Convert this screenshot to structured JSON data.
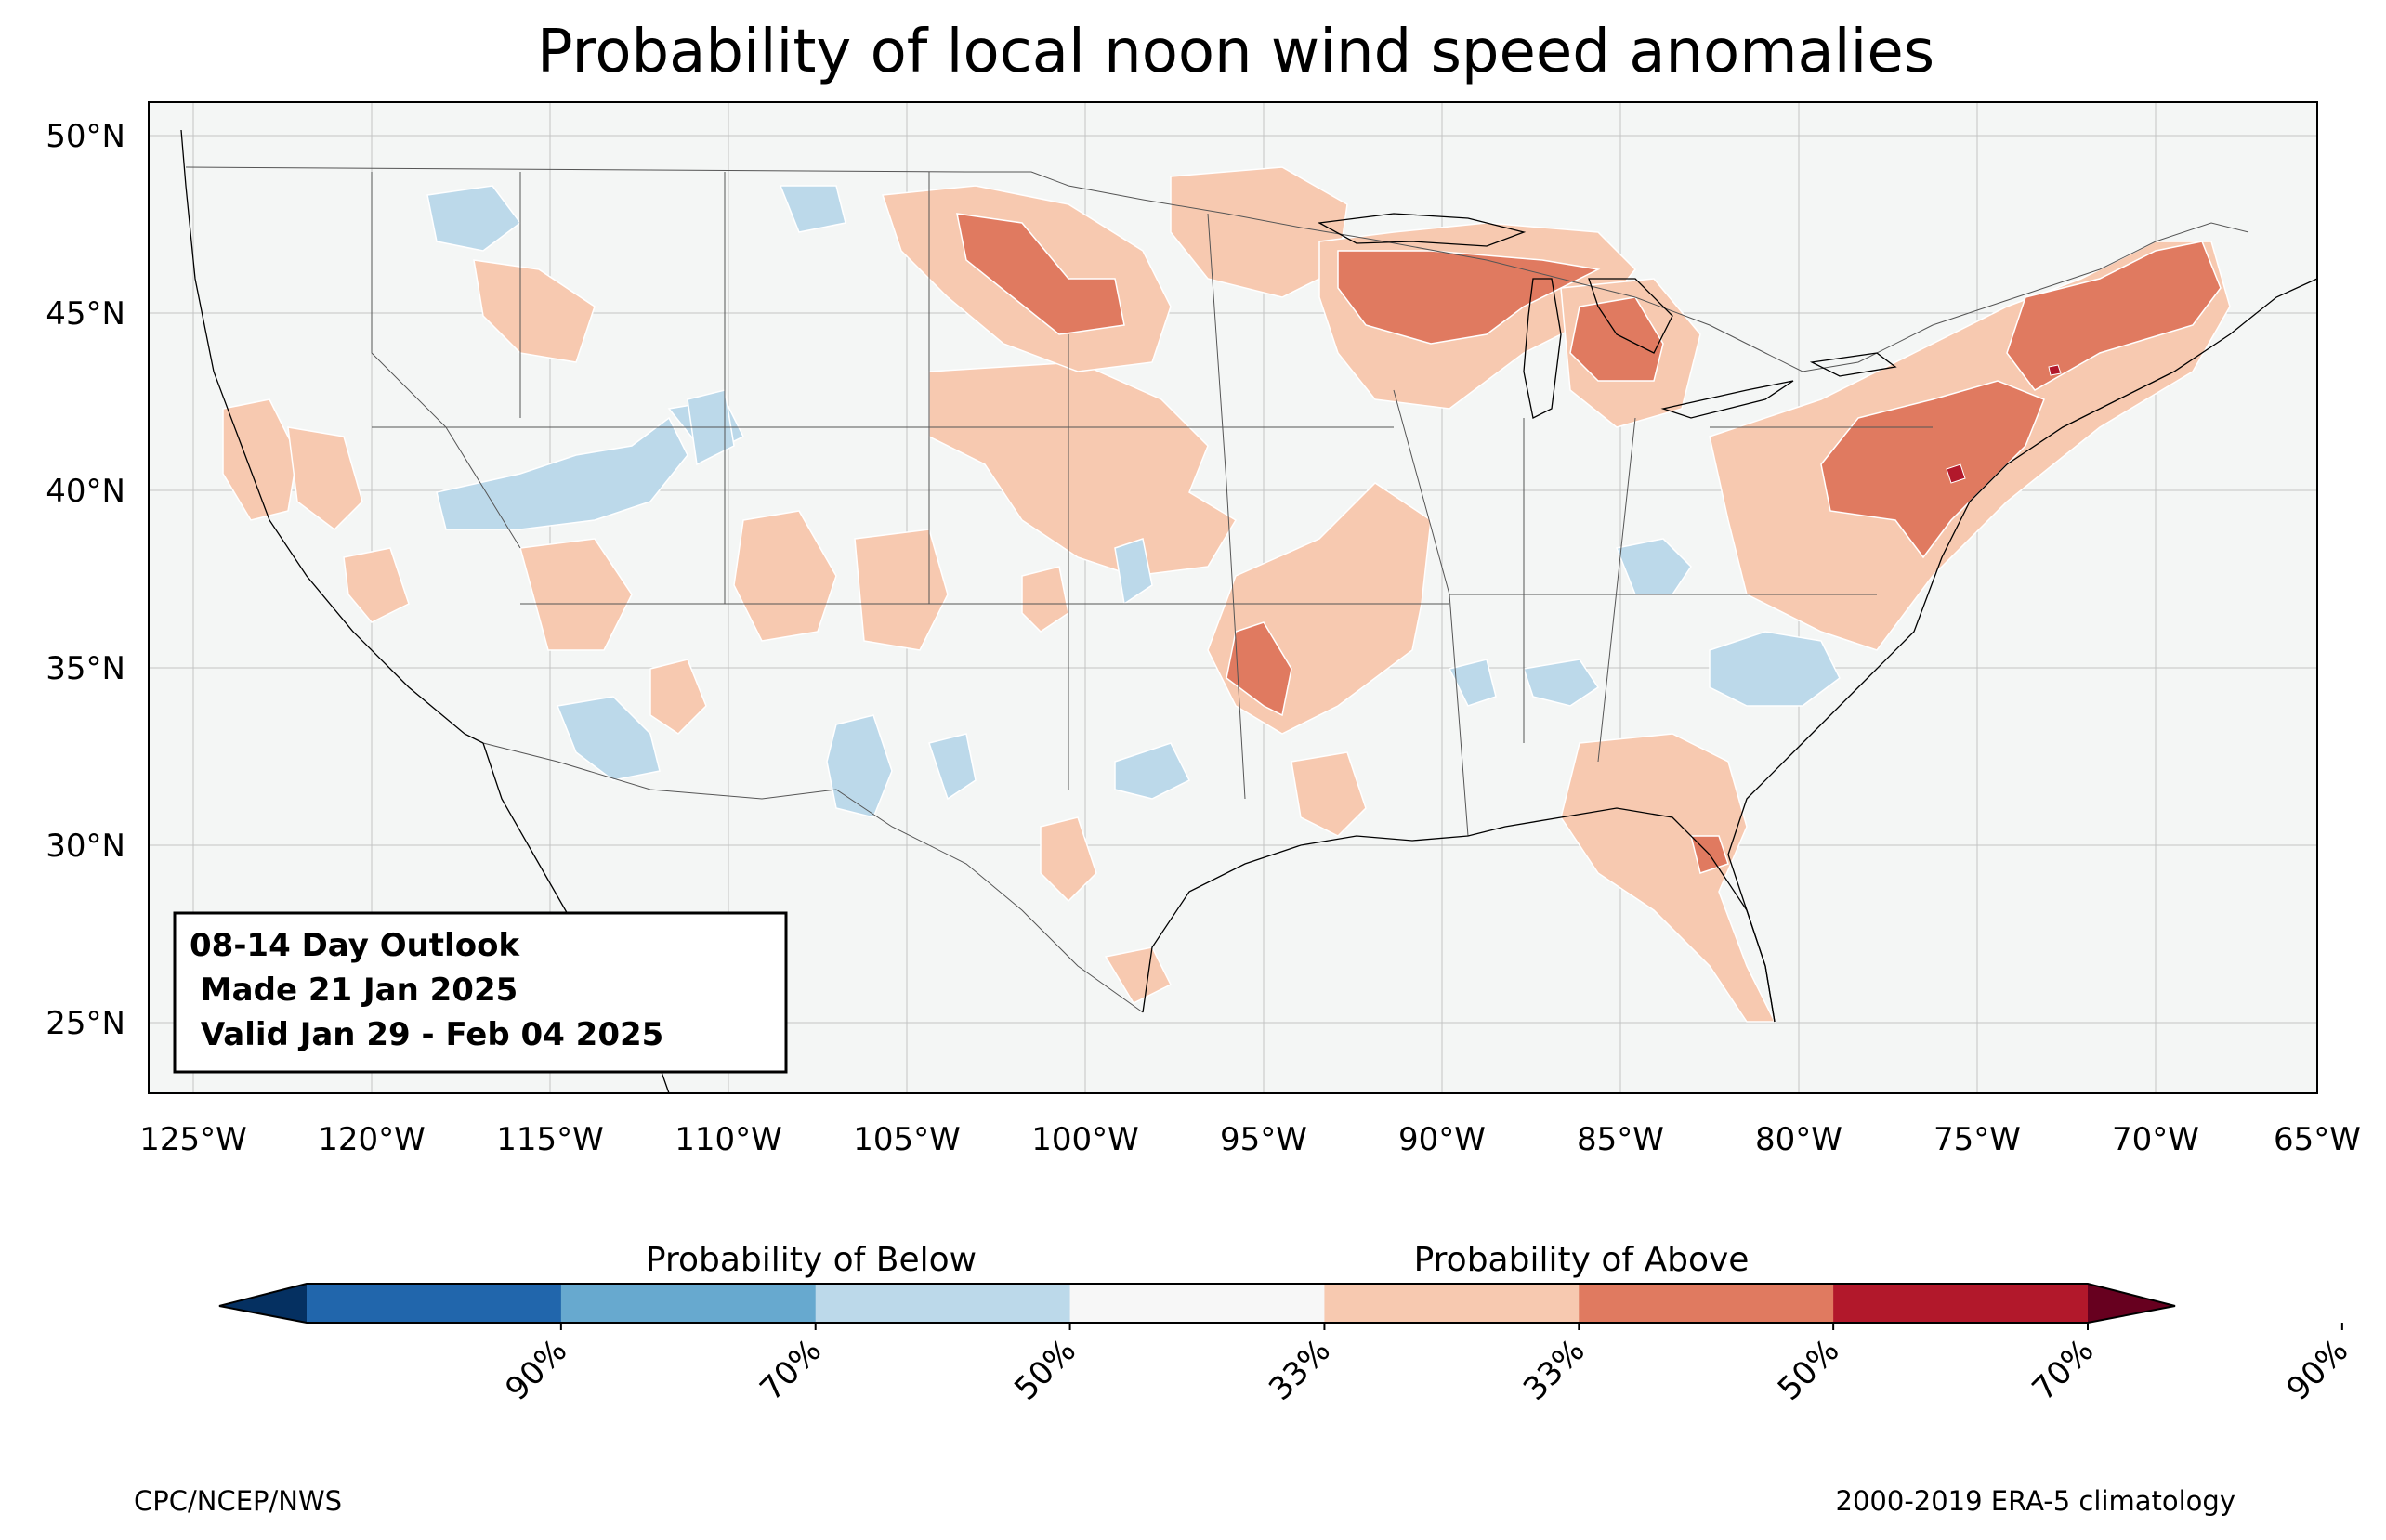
{
  "title": "Probability of local noon wind speed anomalies",
  "map": {
    "lon_ticks": [
      "125°W",
      "120°W",
      "115°W",
      "110°W",
      "105°W",
      "100°W",
      "95°W",
      "90°W",
      "85°W",
      "80°W",
      "75°W",
      "70°W",
      "65°W"
    ],
    "lat_ticks": [
      "50°N",
      "45°N",
      "40°N",
      "35°N",
      "30°N",
      "25°N"
    ],
    "lon_range": [
      -125.5,
      -65
    ],
    "lat_range": [
      23,
      51
    ],
    "gridlines": true,
    "colors": {
      "ocean": "#f4f6f5",
      "border": "#000000",
      "grid": "#b0b0b0"
    }
  },
  "outlook_box": {
    "line1": "08-14 Day Outlook",
    "line2": " Made 21 Jan 2025",
    "line3": " Valid Jan 29 - Feb 04 2025"
  },
  "colorbar": {
    "below_label": "Probability of Below",
    "above_label": "Probability of Above",
    "tick_labels": [
      "90%",
      "70%",
      "50%",
      "33%",
      "33%",
      "50%",
      "70%",
      "90%"
    ],
    "colors": [
      "#053061",
      "#2166ac",
      "#67a9cf",
      "#bcd9ea",
      "#f7f7f7",
      "#f7c9b0",
      "#e07a60",
      "#b2182b",
      "#67001f"
    ]
  },
  "footer": {
    "left": "CPC/NCEP/NWS",
    "right": "2000-2019 ERA-5 climatology"
  },
  "anomaly_regions": [
    {
      "name": "upper-midwest-dakotas",
      "category": "above-50"
    },
    {
      "name": "upper-great-lakes",
      "category": "above-50"
    },
    {
      "name": "lower-michigan",
      "category": "above-50"
    },
    {
      "name": "northeast-new-england",
      "category": "above-50"
    },
    {
      "name": "mid-atlantic",
      "category": "above-50"
    },
    {
      "name": "arkansas-oklahoma",
      "category": "above-50"
    },
    {
      "name": "central-florida",
      "category": "above-50"
    },
    {
      "name": "great-plains",
      "category": "above-33"
    },
    {
      "name": "mississippi-valley",
      "category": "above-33"
    },
    {
      "name": "southeast",
      "category": "above-33"
    },
    {
      "name": "california-nevada",
      "category": "above-33"
    },
    {
      "name": "southern-texas",
      "category": "above-33"
    },
    {
      "name": "great-basin",
      "category": "below-33"
    },
    {
      "name": "carolinas",
      "category": "below-33"
    },
    {
      "name": "southwest",
      "category": "below-33"
    },
    {
      "name": "ohio-valley",
      "category": "below-33"
    }
  ]
}
